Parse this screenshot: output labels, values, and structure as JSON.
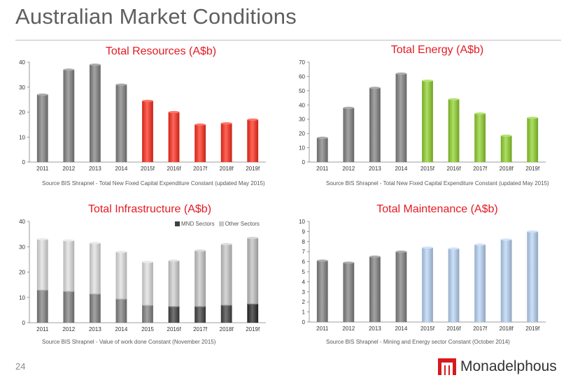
{
  "page": {
    "title": "Australian Market Conditions",
    "page_number": "24",
    "logo_text": "Monadelphous",
    "colors": {
      "title_red": "#e31b23",
      "grey_bar": "#808080",
      "red_bar": "#ff2a1a",
      "green_bar": "#8fd12a",
      "blue_bar": "#b8d4f5"
    }
  },
  "chart_data": [
    {
      "type": "bar",
      "title": "Total Resources (A$b)",
      "source": "Source BIS Shrapnel - Total New Fixed Capital Expenditure Constant (updated May 2015)",
      "categories": [
        "2011",
        "2012",
        "2013",
        "2014",
        "2015f",
        "2016f",
        "2017f",
        "2018f",
        "2019f"
      ],
      "values": [
        27,
        37,
        39,
        31,
        24.5,
        20,
        15,
        15.5,
        17
      ],
      "colors": [
        "#808080",
        "#808080",
        "#808080",
        "#808080",
        "#ff2a1a",
        "#ff2a1a",
        "#ff2a1a",
        "#ff2a1a",
        "#ff2a1a"
      ],
      "ylim": [
        0,
        40
      ],
      "yticks": [
        0,
        10,
        20,
        30,
        40
      ],
      "grid": false
    },
    {
      "type": "bar",
      "title": "Total Energy (A$b)",
      "source": "Source BIS Shrapnel - Total New Fixed Capital Expenditure Constant (updated May 2015)",
      "categories": [
        "2011",
        "2012",
        "2013",
        "2014",
        "2015f",
        "2016f",
        "2017f",
        "2018f",
        "2019f"
      ],
      "values": [
        17,
        38,
        52,
        62,
        57,
        44,
        34,
        18.5,
        31
      ],
      "colors": [
        "#808080",
        "#808080",
        "#808080",
        "#808080",
        "#8fd12a",
        "#8fd12a",
        "#8fd12a",
        "#8fd12a",
        "#8fd12a"
      ],
      "ylim": [
        0,
        70
      ],
      "yticks": [
        0,
        10,
        20,
        30,
        40,
        50,
        60,
        70
      ],
      "grid": false
    },
    {
      "type": "bar",
      "stacked": true,
      "title": "Total Infrastructure (A$b)",
      "source": "Source BIS Shrapnel - Value of work done Constant (November 2015)",
      "categories": [
        "2011",
        "2012",
        "2013",
        "2014",
        "2015",
        "2016f",
        "2017f",
        "2018f",
        "2019f"
      ],
      "series": [
        {
          "name": "MND Sectors",
          "values": [
            13,
            12.5,
            11.5,
            9.5,
            7,
            6.5,
            6.5,
            7,
            7.5
          ],
          "colors": [
            "#808080",
            "#808080",
            "#808080",
            "#808080",
            "#808080",
            "#404040",
            "#404040",
            "#404040",
            "#262626"
          ]
        },
        {
          "name": "Other Sectors",
          "values": [
            20,
            20,
            20,
            18.5,
            17,
            18,
            22,
            24,
            26
          ],
          "colors": [
            "#e0e0e0",
            "#e0e0e0",
            "#e0e0e0",
            "#e0e0e0",
            "#e0e0e0",
            "#d0d0d0",
            "#c8c8c8",
            "#c8c8c8",
            "#c0c0c0"
          ]
        }
      ],
      "legend_colors": [
        "#404040",
        "#c8c8c8"
      ],
      "legend": "top-right",
      "ylim": [
        0,
        40
      ],
      "yticks": [
        0,
        10,
        20,
        30,
        40
      ],
      "grid": false
    },
    {
      "type": "bar",
      "title": "Total Maintenance (A$b)",
      "source": "Source BIS Shrapnel - Mining and Energy sector Constant (October 2014)",
      "categories": [
        "2011",
        "2012",
        "2013",
        "2014",
        "2015f",
        "2016f",
        "2017f",
        "2018f",
        "2019f"
      ],
      "values": [
        6.1,
        5.9,
        6.5,
        7,
        7.4,
        7.3,
        7.7,
        8.2,
        9
      ],
      "colors": [
        "#808080",
        "#808080",
        "#808080",
        "#808080",
        "#b8d4f5",
        "#b8d4f5",
        "#b8d4f5",
        "#b8d4f5",
        "#b8d4f5"
      ],
      "ylim": [
        0,
        10
      ],
      "yticks": [
        0,
        1,
        2,
        3,
        4,
        5,
        6,
        7,
        8,
        9,
        10
      ],
      "grid": false
    }
  ]
}
